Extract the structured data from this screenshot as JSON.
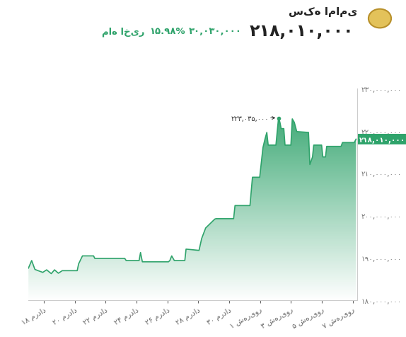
{
  "chart_data": {
    "type": "area",
    "title": "سکه امامی",
    "subtitle": "۲۱۸,۰۱۰,۰۰۰",
    "change": {
      "value": "۳۰,۰۳۰,۰۰۰",
      "percent": "۱۵.۹۸%",
      "period": "ماه اخیر"
    },
    "x": [
      -1.0,
      -0.79,
      -0.58,
      -0.37,
      -0.07,
      0.18,
      0.48,
      0.69,
      0.94,
      1.19,
      2.16,
      2.25,
      2.5,
      3.22,
      3.3,
      5.24,
      5.33,
      6.17,
      6.26,
      6.38,
      8.07,
      8.16,
      8.28,
      8.45,
      9.13,
      9.21,
      10.05,
      10.22,
      10.48,
      11.07,
      11.15,
      12.29,
      12.38,
      13.35,
      13.51,
      13.98,
      14.19,
      14.32,
      14.44,
      14.53,
      15.03,
      15.2,
      15.29,
      15.37,
      15.54,
      15.62,
      16.0,
      16.09,
      16.22,
      16.38,
      17.14,
      17.23,
      17.4,
      17.48,
      17.99,
      18.07,
      18.24,
      18.32,
      19.25,
      19.34,
      20.1,
      20.22
    ],
    "values": [
      187500000,
      189300000,
      187200000,
      186900000,
      186500000,
      187100000,
      186200000,
      187100000,
      186300000,
      186900000,
      186900000,
      188500000,
      190400000,
      190400000,
      189800000,
      189800000,
      189300000,
      189300000,
      191200000,
      189000000,
      189000000,
      189300000,
      190400000,
      189300000,
      189300000,
      192000000,
      191700000,
      194500000,
      197000000,
      199100000,
      199200000,
      199200000,
      202300000,
      202300000,
      209000000,
      209000000,
      216000000,
      218000000,
      219600000,
      216600000,
      216600000,
      223035000,
      222000000,
      220500000,
      220500000,
      216600000,
      216600000,
      222800000,
      222000000,
      219800000,
      219600000,
      212000000,
      213800000,
      216600000,
      216600000,
      213800000,
      213800000,
      216300000,
      216300000,
      217200000,
      217200000,
      218010000
    ],
    "color": "#2fa36b",
    "xlim": [
      -1.0,
      20.3
    ],
    "xticks": [
      {
        "value": 0,
        "label": "۱۸ مرداد"
      },
      {
        "value": 2,
        "label": "۲۰ مرداد"
      },
      {
        "value": 4,
        "label": "۲۲ مرداد"
      },
      {
        "value": 6,
        "label": "۲۴ مرداد"
      },
      {
        "value": 8,
        "label": "۲۶ مرداد"
      },
      {
        "value": 10,
        "label": "۲۸ مرداد"
      },
      {
        "value": 12,
        "label": "۳۰ مرداد"
      },
      {
        "value": 14,
        "label": "۱ شهریور"
      },
      {
        "value": 16,
        "label": "۳ شهریور"
      },
      {
        "value": 18,
        "label": "۵ شهریور"
      },
      {
        "value": 20,
        "label": "۷ شهریور"
      }
    ],
    "ylim": [
      180000000,
      230000000
    ],
    "yticks": [
      {
        "value": 180000000,
        "label": "۱۸۰,۰۰۰,۰۰۰"
      },
      {
        "value": 190000000,
        "label": "۱۹۰,۰۰۰,۰۰۰"
      },
      {
        "value": 200000000,
        "label": "۲۰۰,۰۰۰,۰۰۰"
      },
      {
        "value": 210000000,
        "label": "۲۱۰,۰۰۰,۰۰۰"
      },
      {
        "value": 220000000,
        "label": "۲۲۰,۰۰۰,۰۰۰"
      },
      {
        "value": 230000000,
        "label": "۲۳۰,۰۰۰,۰۰۰"
      }
    ],
    "annotations": [
      {
        "type": "arrow",
        "text": "۲۲۳,۰۳۵,۰۰۰",
        "x": 15.2,
        "y": 223035000
      },
      {
        "type": "tag",
        "text": "۲۱۸,۰۱۰,۰۰۰",
        "x": 20.22,
        "y": 218010000
      }
    ],
    "grid": false
  }
}
